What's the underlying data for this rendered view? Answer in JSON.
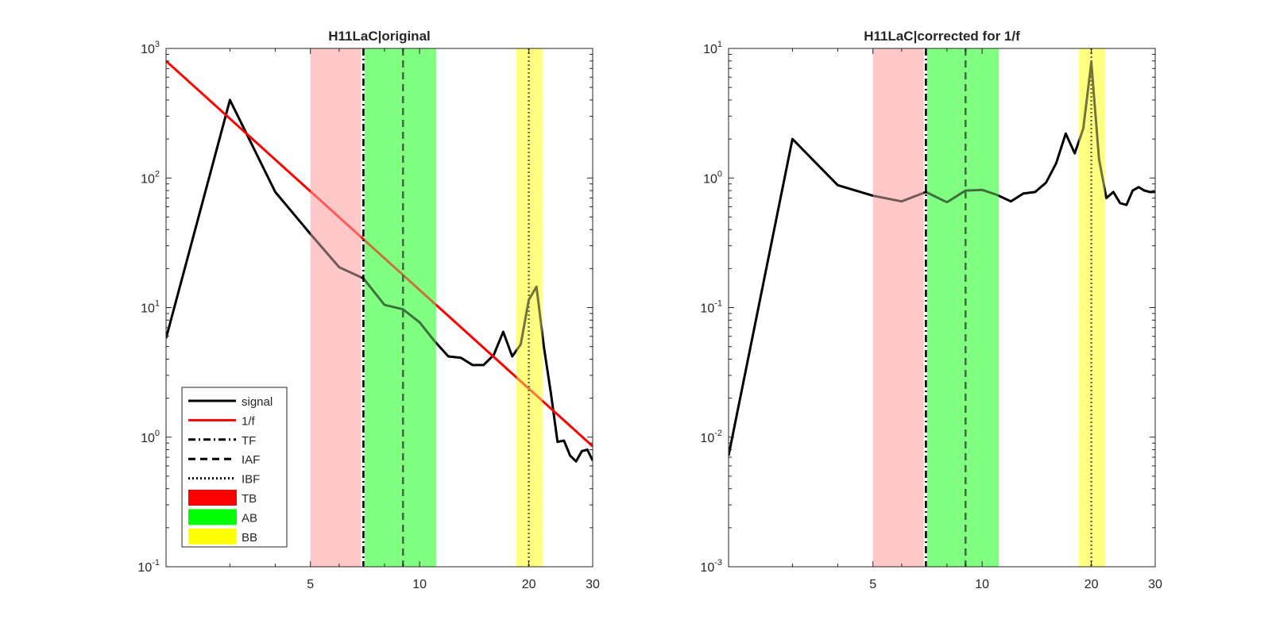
{
  "chart_data": [
    {
      "type": "line",
      "title": "H11LaC|original",
      "xscale": "log",
      "yscale": "log",
      "xlim": [
        2,
        30
      ],
      "ylim": [
        0.1,
        1000
      ],
      "xticks": [
        5,
        10,
        20,
        30
      ],
      "xtick_labels": [
        "5",
        "10",
        "20",
        "30"
      ],
      "yticks": [
        0.1,
        1,
        10,
        100,
        1000
      ],
      "ytick_labels": [
        {
          "base": "10",
          "exp": "-1"
        },
        {
          "base": "10",
          "exp": "0"
        },
        {
          "base": "10",
          "exp": "1"
        },
        {
          "base": "10",
          "exp": "2"
        },
        {
          "base": "10",
          "exp": "3"
        }
      ],
      "bands": [
        {
          "name": "TB",
          "from": 5.0,
          "to": 6.9,
          "color": "#ffc8c8"
        },
        {
          "name": "AB",
          "from": 7.05,
          "to": 11.1,
          "color": "#80ff80"
        },
        {
          "name": "BB",
          "from": 18.5,
          "to": 21.8,
          "color": "#ffff80"
        }
      ],
      "vlines": [
        {
          "name": "TF",
          "x": 7.0,
          "style": "dashdot"
        },
        {
          "name": "IAF",
          "x": 9.0,
          "style": "dash"
        },
        {
          "name": "IBF",
          "x": 20.0,
          "style": "dot"
        }
      ],
      "series": [
        {
          "name": "signal",
          "color": "#000000",
          "x": [
            2,
            3,
            4,
            5,
            6,
            7,
            8,
            9,
            10,
            11,
            12,
            13,
            14,
            15,
            16,
            17,
            18,
            19,
            20,
            21,
            22,
            23,
            24,
            25,
            26,
            27,
            28,
            29,
            30
          ],
          "y": [
            5.8,
            400,
            78,
            37,
            20.5,
            16.8,
            10.5,
            9.7,
            7.7,
            5.5,
            4.2,
            4.1,
            3.6,
            3.6,
            4.3,
            6.5,
            4.2,
            5.2,
            11.5,
            14.5,
            5.0,
            2.2,
            0.92,
            0.94,
            0.72,
            0.65,
            0.78,
            0.8,
            0.66
          ]
        },
        {
          "name": "1/f",
          "color": "#ff0000",
          "x": [
            2,
            30
          ],
          "y": [
            800,
            0.85
          ]
        }
      ],
      "legend": {
        "position": "bottom-left",
        "entries": [
          {
            "label": "signal",
            "kind": "line",
            "color": "#000000",
            "style": "solid"
          },
          {
            "label": "1/f",
            "kind": "line",
            "color": "#ff0000",
            "style": "solid"
          },
          {
            "label": "TF",
            "kind": "line",
            "color": "#000000",
            "style": "dashdot"
          },
          {
            "label": "IAF",
            "kind": "line",
            "color": "#000000",
            "style": "dash"
          },
          {
            "label": "IBF",
            "kind": "line",
            "color": "#000000",
            "style": "dot"
          },
          {
            "label": "TB",
            "kind": "patch",
            "color": "#ff0000"
          },
          {
            "label": "AB",
            "kind": "patch",
            "color": "#00ff00"
          },
          {
            "label": "BB",
            "kind": "patch",
            "color": "#ffff00"
          }
        ]
      }
    },
    {
      "type": "line",
      "title": "H11LaC|corrected for 1/f",
      "xscale": "log",
      "yscale": "log",
      "xlim": [
        2,
        30
      ],
      "ylim": [
        0.001,
        10
      ],
      "xticks": [
        5,
        10,
        20,
        30
      ],
      "xtick_labels": [
        "5",
        "10",
        "20",
        "30"
      ],
      "yticks": [
        0.001,
        0.01,
        0.1,
        1,
        10
      ],
      "ytick_labels": [
        {
          "base": "10",
          "exp": "-3"
        },
        {
          "base": "10",
          "exp": "-2"
        },
        {
          "base": "10",
          "exp": "-1"
        },
        {
          "base": "10",
          "exp": "0"
        },
        {
          "base": "10",
          "exp": "1"
        }
      ],
      "bands": [
        {
          "name": "TB",
          "from": 5.0,
          "to": 6.9,
          "color": "#ffc8c8"
        },
        {
          "name": "AB",
          "from": 7.05,
          "to": 11.1,
          "color": "#80ff80"
        },
        {
          "name": "BB",
          "from": 18.5,
          "to": 21.8,
          "color": "#ffff80"
        }
      ],
      "vlines": [
        {
          "name": "TF",
          "x": 7.0,
          "style": "dashdot"
        },
        {
          "name": "IAF",
          "x": 9.0,
          "style": "dash"
        },
        {
          "name": "IBF",
          "x": 20.0,
          "style": "dot"
        }
      ],
      "series": [
        {
          "name": "signal",
          "color": "#000000",
          "x": [
            2,
            3,
            4,
            5,
            6,
            7,
            8,
            9,
            10,
            11,
            12,
            13,
            14,
            15,
            16,
            17,
            18,
            19,
            20,
            21,
            22,
            23,
            24,
            25,
            26,
            27,
            28,
            29,
            30
          ],
          "y": [
            0.0072,
            2.0,
            0.88,
            0.73,
            0.66,
            0.78,
            0.65,
            0.8,
            0.81,
            0.74,
            0.66,
            0.76,
            0.78,
            0.92,
            1.3,
            2.2,
            1.55,
            2.4,
            7.8,
            1.4,
            0.7,
            0.78,
            0.64,
            0.62,
            0.8,
            0.85,
            0.8,
            0.78,
            0.78
          ]
        }
      ]
    }
  ]
}
